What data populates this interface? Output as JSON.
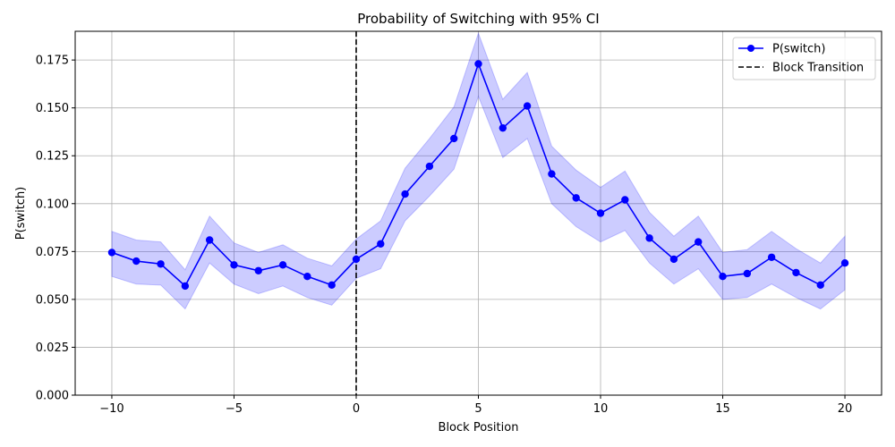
{
  "chart_data": {
    "type": "line",
    "title": "Probability of Switching with 95% CI",
    "xlabel": "Block Position",
    "ylabel": "P(switch)",
    "xlim": [
      -11.5,
      21.5
    ],
    "ylim": [
      0,
      0.19
    ],
    "xticks": [
      -10,
      -5,
      0,
      5,
      10,
      15,
      20
    ],
    "xtick_labels": [
      "−10",
      "−5",
      "0",
      "5",
      "10",
      "15",
      "20"
    ],
    "yticks": [
      0.0,
      0.025,
      0.05,
      0.075,
      0.1,
      0.125,
      0.15,
      0.175
    ],
    "ytick_labels": [
      "0.000",
      "0.025",
      "0.050",
      "0.075",
      "0.100",
      "0.125",
      "0.150",
      "0.175"
    ],
    "grid": true,
    "legend_position": "top-right",
    "series": [
      {
        "name": "P(switch)",
        "color": "#0000ff",
        "x": [
          -10,
          -9,
          -8,
          -7,
          -6,
          -5,
          -4,
          -3,
          -2,
          -1,
          0,
          1,
          2,
          3,
          4,
          5,
          6,
          7,
          8,
          9,
          10,
          11,
          12,
          13,
          14,
          15,
          16,
          17,
          18,
          19,
          20
        ],
        "y": [
          0.0745,
          0.07,
          0.0685,
          0.057,
          0.081,
          0.068,
          0.065,
          0.068,
          0.062,
          0.0575,
          0.071,
          0.079,
          0.105,
          0.1195,
          0.134,
          0.173,
          0.1395,
          0.151,
          0.1155,
          0.103,
          0.095,
          0.102,
          0.082,
          0.071,
          0.08,
          0.062,
          0.0635,
          0.072,
          0.064,
          0.0575,
          0.069
        ],
        "ci_lower": [
          0.062,
          0.058,
          0.0575,
          0.045,
          0.069,
          0.058,
          0.053,
          0.057,
          0.051,
          0.047,
          0.061,
          0.066,
          0.091,
          0.104,
          0.118,
          0.156,
          0.124,
          0.134,
          0.1,
          0.088,
          0.08,
          0.086,
          0.069,
          0.058,
          0.066,
          0.05,
          0.051,
          0.058,
          0.051,
          0.045,
          0.055
        ],
        "ci_upper": [
          0.0855,
          0.081,
          0.08,
          0.0655,
          0.0935,
          0.0795,
          0.0745,
          0.0785,
          0.0715,
          0.0675,
          0.0815,
          0.091,
          0.1185,
          0.134,
          0.1505,
          0.189,
          0.1545,
          0.1685,
          0.13,
          0.1175,
          0.1085,
          0.117,
          0.0955,
          0.083,
          0.0935,
          0.0745,
          0.076,
          0.0855,
          0.0765,
          0.069,
          0.083
        ],
        "ci_color": "#0000ff"
      }
    ],
    "vline": {
      "name": "Block Transition",
      "x": 0,
      "color": "#000000"
    }
  }
}
